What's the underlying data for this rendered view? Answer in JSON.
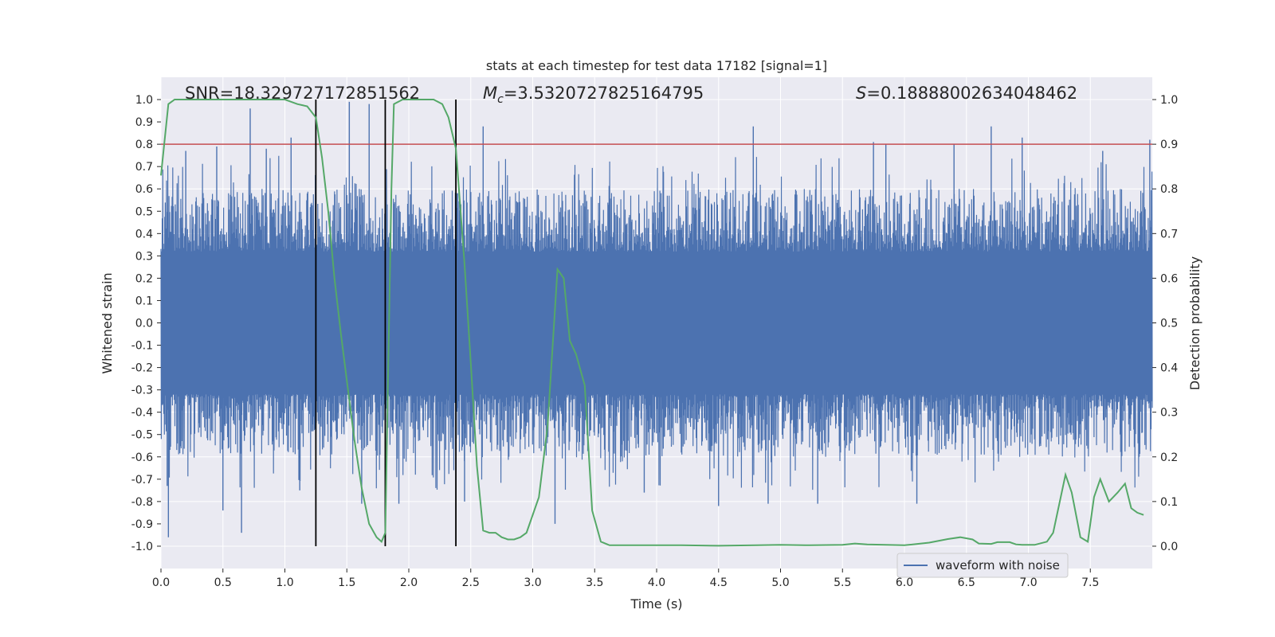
{
  "chart_data": {
    "type": "line",
    "title": "stats at each timestep for test data 17182 [signal=1]",
    "xlabel": "Time (s)",
    "ylabel_left": "Whitened strain",
    "ylabel_right": "Detection probability",
    "xlim": [
      0.0,
      8.0
    ],
    "ylim_left": [
      -1.1,
      1.1
    ],
    "ylim_right": [
      -0.05,
      1.05
    ],
    "xticks": [
      "0.0",
      "0.5",
      "1.0",
      "1.5",
      "2.0",
      "2.5",
      "3.0",
      "3.5",
      "4.0",
      "4.5",
      "5.0",
      "5.5",
      "6.0",
      "6.5",
      "7.0",
      "7.5"
    ],
    "xtick_values": [
      0.0,
      0.5,
      1.0,
      1.5,
      2.0,
      2.5,
      3.0,
      3.5,
      4.0,
      4.5,
      5.0,
      5.5,
      6.0,
      6.5,
      7.0,
      7.5
    ],
    "yticks_left": [
      "1.0",
      "0.9",
      "0.8",
      "0.7",
      "0.6",
      "0.5",
      "0.4",
      "0.3",
      "0.2",
      "0.1",
      "0.0",
      "-0.1",
      "-0.2",
      "-0.3",
      "-0.4",
      "-0.5",
      "-0.6",
      "-0.7",
      "-0.8",
      "-0.9",
      "-1.0"
    ],
    "ytick_values_left": [
      1.0,
      0.9,
      0.8,
      0.7,
      0.6,
      0.5,
      0.4,
      0.3,
      0.2,
      0.1,
      0.0,
      -0.1,
      -0.2,
      -0.3,
      -0.4,
      -0.5,
      -0.6,
      -0.7,
      -0.8,
      -0.9,
      -1.0
    ],
    "yticks_right": [
      "1.0",
      "0.9",
      "0.8",
      "0.7",
      "0.6",
      "0.5",
      "0.4",
      "0.3",
      "0.2",
      "0.1",
      "0.0"
    ],
    "ytick_values_right": [
      1.0,
      0.9,
      0.8,
      0.7,
      0.6,
      0.5,
      0.4,
      0.3,
      0.2,
      0.1,
      0.0
    ],
    "annotations": {
      "snr": "SNR=18.329727172851562",
      "mc_symbol": "M",
      "mc_sub": "c",
      "mc_value": "=3.5320727825164795",
      "s_symbol": "S",
      "s_value": "=0.18888002634048462"
    },
    "threshold": {
      "value": 0.9,
      "axis": "right",
      "color": "#c44e52"
    },
    "vertical_lines": [
      1.25,
      1.81,
      2.38
    ],
    "legend": {
      "label": "waveform with noise",
      "placement": "lower-right"
    },
    "series": [
      {
        "name": "waveform with noise",
        "axis": "left",
        "color": "#4c72b0",
        "style": "dense noise, typical envelope about -0.6 to 0.6, spikes to about +/-0.95",
        "spikes": [
          {
            "t": 0.06,
            "v": -0.96
          },
          {
            "t": 0.05,
            "v": -0.73
          },
          {
            "t": 0.2,
            "v": 0.77
          },
          {
            "t": 0.45,
            "v": 0.79
          },
          {
            "t": 0.5,
            "v": -0.84
          },
          {
            "t": 0.65,
            "v": -0.94
          },
          {
            "t": 0.72,
            "v": 0.96
          },
          {
            "t": 0.85,
            "v": 0.78
          },
          {
            "t": 1.05,
            "v": 0.83
          },
          {
            "t": 1.12,
            "v": -0.75
          },
          {
            "t": 1.52,
            "v": 0.99
          },
          {
            "t": 1.62,
            "v": -0.81
          },
          {
            "t": 1.68,
            "v": 0.98
          },
          {
            "t": 1.92,
            "v": -0.81
          },
          {
            "t": 2.6,
            "v": 0.88
          },
          {
            "t": 2.45,
            "v": -0.8
          },
          {
            "t": 3.18,
            "v": -0.9
          },
          {
            "t": 3.9,
            "v": -0.76
          },
          {
            "t": 4.5,
            "v": -0.82
          },
          {
            "t": 4.78,
            "v": 0.88
          },
          {
            "t": 4.9,
            "v": -0.81
          },
          {
            "t": 5.3,
            "v": -0.81
          },
          {
            "t": 5.75,
            "v": 0.81
          },
          {
            "t": 5.85,
            "v": 0.8
          },
          {
            "t": 6.1,
            "v": -0.81
          },
          {
            "t": 6.4,
            "v": 0.8
          },
          {
            "t": 6.7,
            "v": 0.88
          },
          {
            "t": 6.95,
            "v": 0.83
          },
          {
            "t": 7.6,
            "v": 0.77
          },
          {
            "t": 7.98,
            "v": 0.82
          }
        ]
      },
      {
        "name": "detection probability",
        "axis": "right",
        "color": "#55a868",
        "x": [
          0.0,
          0.06,
          0.11,
          0.2,
          0.5,
          0.75,
          1.0,
          1.1,
          1.18,
          1.25,
          1.3,
          1.35,
          1.4,
          1.45,
          1.5,
          1.56,
          1.62,
          1.68,
          1.74,
          1.78,
          1.81,
          1.86,
          1.88,
          1.95,
          2.0,
          2.1,
          2.2,
          2.27,
          2.32,
          2.38,
          2.45,
          2.5,
          2.55,
          2.6,
          2.65,
          2.7,
          2.75,
          2.8,
          2.85,
          2.9,
          2.95,
          3.05,
          3.12,
          3.2,
          3.25,
          3.3,
          3.35,
          3.42,
          3.48,
          3.55,
          3.62,
          3.8,
          4.0,
          4.2,
          4.5,
          4.8,
          5.0,
          5.2,
          5.5,
          5.6,
          5.7,
          6.0,
          6.2,
          6.35,
          6.45,
          6.55,
          6.6,
          6.7,
          6.75,
          6.85,
          6.9,
          6.95,
          7.05,
          7.15,
          7.2,
          7.3,
          7.35,
          7.42,
          7.48,
          7.53,
          7.58,
          7.65,
          7.72,
          7.78,
          7.83,
          7.88,
          7.93
        ],
        "y": [
          0.83,
          0.99,
          1.0,
          1.0,
          1.0,
          1.0,
          1.0,
          0.99,
          0.985,
          0.96,
          0.87,
          0.75,
          0.6,
          0.48,
          0.37,
          0.24,
          0.13,
          0.05,
          0.02,
          0.01,
          0.03,
          0.8,
          0.99,
          1.0,
          1.0,
          1.0,
          1.0,
          0.99,
          0.96,
          0.89,
          0.63,
          0.41,
          0.18,
          0.035,
          0.03,
          0.03,
          0.02,
          0.015,
          0.015,
          0.02,
          0.03,
          0.11,
          0.27,
          0.62,
          0.6,
          0.46,
          0.43,
          0.36,
          0.08,
          0.01,
          0.002,
          0.002,
          0.002,
          0.002,
          0.001,
          0.002,
          0.003,
          0.002,
          0.003,
          0.006,
          0.004,
          0.002,
          0.008,
          0.016,
          0.02,
          0.015,
          0.006,
          0.005,
          0.009,
          0.009,
          0.004,
          0.003,
          0.003,
          0.01,
          0.03,
          0.16,
          0.12,
          0.02,
          0.01,
          0.11,
          0.15,
          0.1,
          0.12,
          0.14,
          0.085,
          0.075,
          0.07
        ]
      }
    ]
  }
}
